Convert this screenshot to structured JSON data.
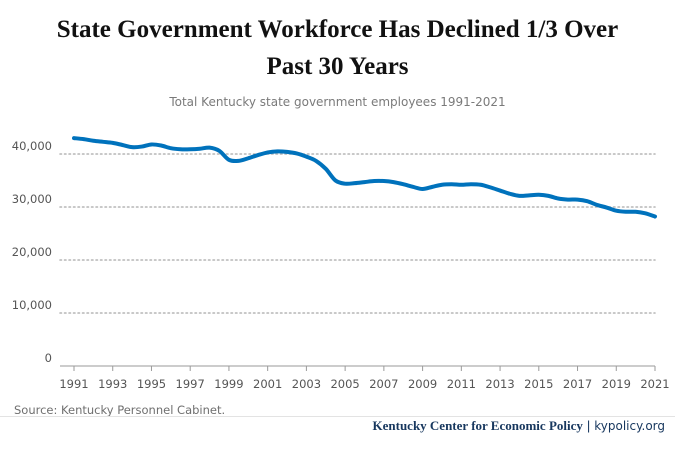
{
  "title_line_1": "State Government Workforce Has Declined 1/3 Over",
  "title_line_2": "Past 30 Years",
  "subtitle": "Total Kentucky state government employees 1991-2021",
  "source": "Source: Kentucky Personnel Cabinet.",
  "credit": {
    "organization": "Kentucky Center for Economic Policy",
    "separator": "|",
    "site": "kypolicy.org"
  },
  "colors": {
    "line": "#0072bc",
    "grid": "#b5b5b5",
    "axis": "#9a9a9a",
    "credit": "#17375e"
  },
  "chart_data": {
    "type": "line",
    "title": "State Government Workforce Has Declined 1/3 Over Past 30 Years",
    "subtitle": "Total Kentucky state government employees 1991-2021",
    "xlabel": "",
    "ylabel": "",
    "xlim": [
      1991,
      2021
    ],
    "ylim": [
      0,
      40000
    ],
    "yticks": [
      0,
      10000,
      20000,
      30000,
      40000
    ],
    "ytick_labels": [
      "0",
      "10,000",
      "20,000",
      "30,000",
      "40,000"
    ],
    "xticks": [
      1991,
      1993,
      1995,
      1997,
      1999,
      2001,
      2003,
      2005,
      2007,
      2009,
      2011,
      2013,
      2015,
      2017,
      2019,
      2021
    ],
    "xtick_labels": [
      "1991",
      "1993",
      "1995",
      "1997",
      "1999",
      "2001",
      "2003",
      "2005",
      "2007",
      "2009",
      "2011",
      "2013",
      "2015",
      "2017",
      "2019",
      "2021"
    ],
    "grid": "horizontal dotted",
    "legend": "none",
    "x": [
      1991,
      1991.5,
      1992,
      1992.5,
      1993,
      1993.5,
      1994,
      1994.5,
      1995,
      1995.5,
      1996,
      1996.5,
      1997,
      1997.5,
      1998,
      1998.5,
      1999,
      1999.5,
      2000,
      2000.5,
      2001,
      2001.5,
      2002,
      2002.5,
      2003,
      2003.5,
      2004,
      2004.5,
      2005,
      2005.5,
      2006,
      2006.5,
      2007,
      2007.5,
      2008,
      2008.5,
      2009,
      2009.5,
      2010,
      2010.5,
      2011,
      2011.5,
      2012,
      2012.5,
      2013,
      2013.5,
      2014,
      2014.5,
      2015,
      2015.5,
      2016,
      2016.5,
      2017,
      2017.5,
      2018,
      2018.5,
      2019,
      2019.5,
      2020,
      2020.5,
      2021
    ],
    "series": [
      {
        "values": [
          43000,
          42800,
          42500,
          42300,
          42100,
          41700,
          41300,
          41400,
          41800,
          41600,
          41100,
          40900,
          40900,
          41000,
          41200,
          40600,
          38900,
          38700,
          39200,
          39800,
          40300,
          40500,
          40400,
          40100,
          39500,
          38700,
          37200,
          35000,
          34400,
          34500,
          34700,
          34900,
          34900,
          34700,
          34300,
          33800,
          33400,
          33800,
          34200,
          34300,
          34200,
          34300,
          34200,
          33700,
          33100,
          32500,
          32100,
          32200,
          32300,
          32100,
          31600,
          31400,
          31400,
          31100,
          30400,
          29900,
          29300,
          29100,
          29100,
          28800,
          28200
        ]
      }
    ]
  }
}
